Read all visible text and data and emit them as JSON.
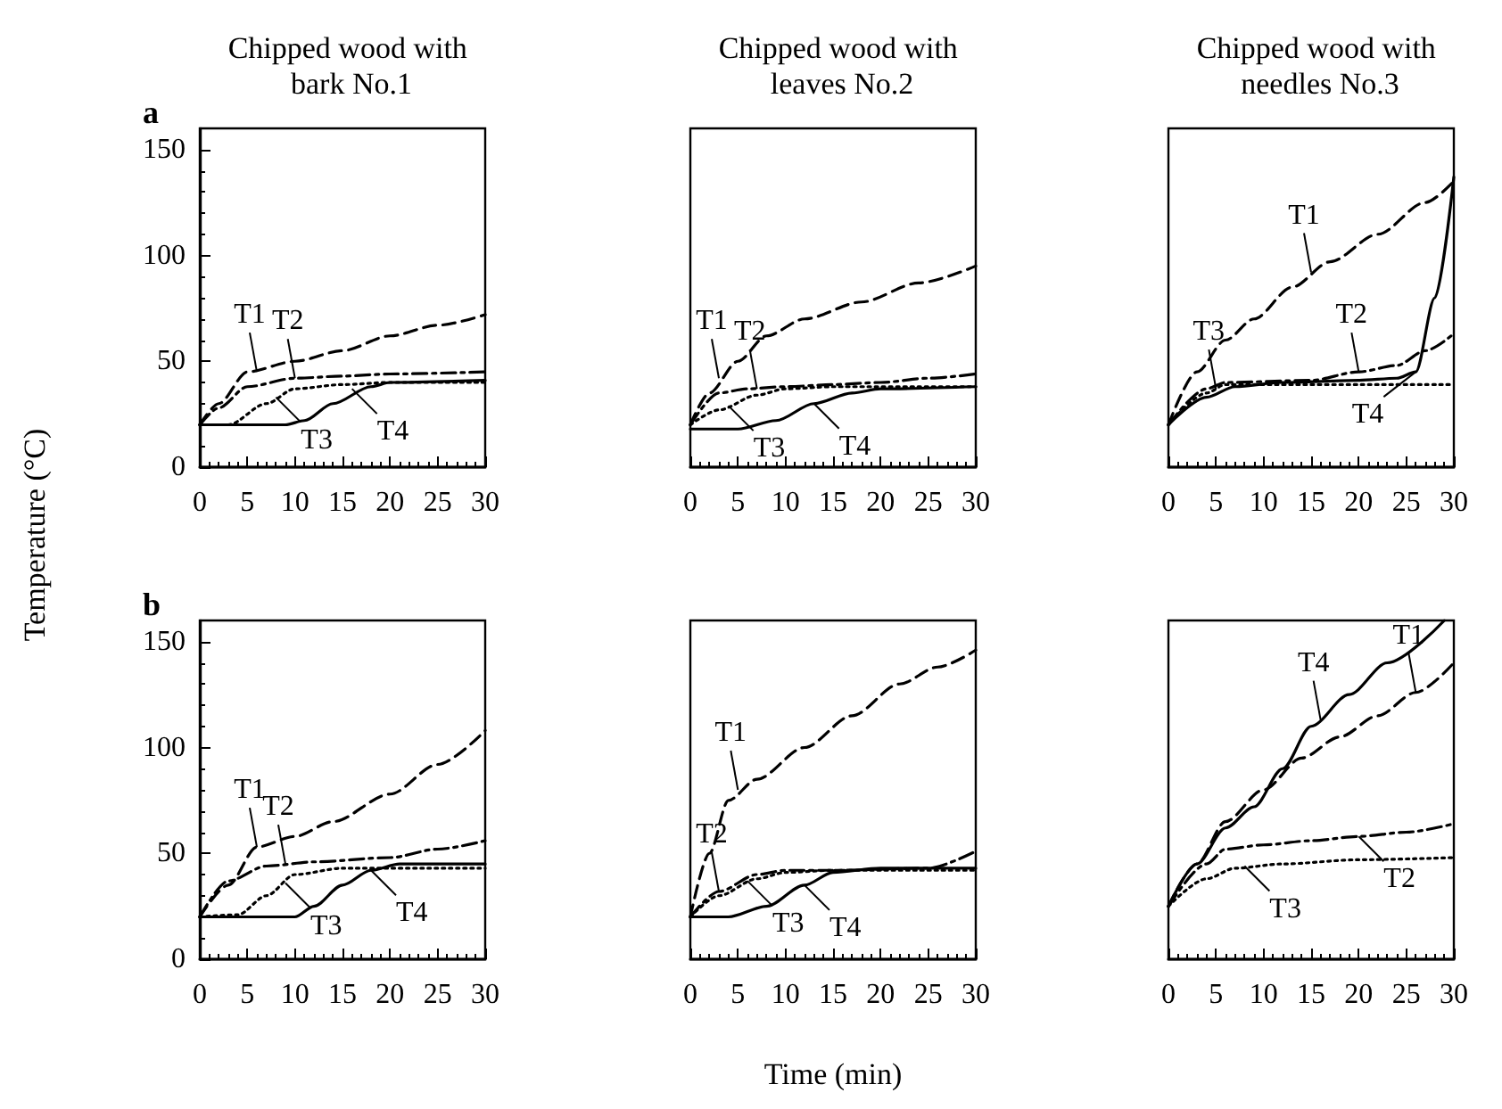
{
  "chart_data": [
    {
      "type": "line",
      "title": "Chipped wood with bark No.1",
      "ylabel": "Temperature (°C)",
      "annotations": [
        "a",
        {
          "text": "T1",
          "x": 6,
          "y": 45
        },
        {
          "text": "T2",
          "x": 10,
          "y": 42
        },
        {
          "text": "T3",
          "x": 8,
          "y": 33
        },
        {
          "text": "T4",
          "x": 16,
          "y": 37
        }
      ],
      "xlim": [
        0,
        30
      ],
      "xticks": [
        0,
        5,
        10,
        15,
        20,
        25,
        30
      ],
      "ylim": [
        0,
        160
      ],
      "yticks": [
        0,
        50,
        100,
        150
      ],
      "grid": false,
      "series": [
        {
          "color": "#000000",
          "line_style": "dashed",
          "x": [
            0,
            2,
            5,
            10,
            15,
            20,
            25,
            30
          ],
          "values": [
            20,
            30,
            45,
            50,
            55,
            62,
            67,
            72
          ]
        },
        {
          "color": "#000000",
          "line_style": "dashdot",
          "x": [
            0,
            2,
            5,
            10,
            15,
            20,
            30
          ],
          "values": [
            20,
            28,
            38,
            42,
            43,
            44,
            45
          ]
        },
        {
          "color": "#000000",
          "line_style": "dotted",
          "x": [
            0,
            3,
            7,
            10,
            15,
            20,
            30
          ],
          "values": [
            20,
            20,
            30,
            37,
            39,
            40,
            40
          ]
        },
        {
          "color": "#000000",
          "line_style": "solid",
          "x": [
            0,
            9,
            11,
            14,
            18,
            20,
            30
          ],
          "values": [
            20,
            20,
            22,
            30,
            38,
            40,
            41
          ]
        }
      ]
    },
    {
      "type": "line",
      "title": "Chipped wood with leaves No.2",
      "annotations": [
        {
          "text": "T1",
          "x": 3,
          "y": 42
        },
        {
          "text": "T2",
          "x": 7,
          "y": 37
        },
        {
          "text": "T3",
          "x": 4,
          "y": 29
        },
        {
          "text": "T4",
          "x": 13,
          "y": 30
        }
      ],
      "xlim": [
        0,
        30
      ],
      "xticks": [
        0,
        5,
        10,
        15,
        20,
        25,
        30
      ],
      "ylim": [
        0,
        160
      ],
      "tick_labels": "x",
      "grid": false,
      "series": [
        {
          "color": "#000000",
          "line_style": "dashed",
          "x": [
            0,
            2,
            5,
            8,
            12,
            18,
            24,
            30
          ],
          "values": [
            20,
            35,
            50,
            62,
            70,
            78,
            87,
            95
          ]
        },
        {
          "color": "#000000",
          "line_style": "dashdot",
          "x": [
            0,
            3,
            6,
            10,
            15,
            20,
            25,
            30
          ],
          "values": [
            20,
            35,
            37,
            38,
            39,
            40,
            42,
            44
          ]
        },
        {
          "color": "#000000",
          "line_style": "dotted",
          "x": [
            0,
            3,
            7,
            10,
            15,
            30
          ],
          "values": [
            20,
            27,
            34,
            37,
            38,
            38
          ]
        },
        {
          "color": "#000000",
          "line_style": "solid",
          "x": [
            0,
            5,
            9,
            13,
            17,
            20,
            30
          ],
          "values": [
            18,
            18,
            22,
            30,
            35,
            37,
            38
          ]
        }
      ]
    },
    {
      "type": "line",
      "title": "Chipped wood with needles No.3",
      "annotations": [
        {
          "text": "T1",
          "x": 15,
          "y": 92
        },
        {
          "text": "T2",
          "x": 20,
          "y": 45
        },
        {
          "text": "T3",
          "x": 5,
          "y": 37
        },
        {
          "text": "T4",
          "x": 26,
          "y": 45
        }
      ],
      "xlim": [
        0,
        30
      ],
      "xticks": [
        0,
        5,
        10,
        15,
        20,
        25,
        30
      ],
      "ylim": [
        0,
        160
      ],
      "tick_labels": "x",
      "grid": false,
      "series": [
        {
          "color": "#000000",
          "line_style": "dashed",
          "x": [
            0,
            3,
            6,
            9,
            13,
            17,
            22,
            27,
            30
          ],
          "values": [
            20,
            45,
            60,
            70,
            85,
            97,
            110,
            125,
            135
          ]
        },
        {
          "color": "#000000",
          "line_style": "dashdot",
          "x": [
            0,
            4,
            6,
            15,
            20,
            24,
            27,
            30
          ],
          "values": [
            20,
            37,
            40,
            41,
            45,
            48,
            55,
            63
          ]
        },
        {
          "color": "#000000",
          "line_style": "dotted",
          "x": [
            0,
            4,
            6,
            30
          ],
          "values": [
            20,
            35,
            39,
            39
          ]
        },
        {
          "color": "#000000",
          "line_style": "solid",
          "x": [
            0,
            4,
            7,
            12,
            20,
            24,
            26,
            28,
            30
          ],
          "values": [
            20,
            33,
            38,
            40,
            41,
            42,
            45,
            80,
            137
          ]
        }
      ]
    },
    {
      "type": "line",
      "annotations": [
        "b",
        {
          "text": "T1",
          "x": 6,
          "y": 53
        },
        {
          "text": "T2",
          "x": 9,
          "y": 45
        },
        {
          "text": "T3",
          "x": 9,
          "y": 36
        },
        {
          "text": "T4",
          "x": 18,
          "y": 42
        }
      ],
      "xlim": [
        0,
        30
      ],
      "xticks": [
        0,
        5,
        10,
        15,
        20,
        25,
        30
      ],
      "ylim": [
        0,
        160
      ],
      "yticks": [
        0,
        50,
        100,
        150
      ],
      "grid": false,
      "series": [
        {
          "color": "#000000",
          "line_style": "dashed",
          "x": [
            0,
            3,
            6,
            10,
            14,
            20,
            25,
            30
          ],
          "values": [
            20,
            35,
            53,
            58,
            65,
            78,
            92,
            108
          ]
        },
        {
          "color": "#000000",
          "line_style": "dashdot",
          "x": [
            0,
            3,
            7,
            12,
            20,
            25,
            30
          ],
          "values": [
            20,
            37,
            44,
            46,
            48,
            52,
            56
          ]
        },
        {
          "color": "#000000",
          "line_style": "dotted",
          "x": [
            0,
            4,
            7,
            10,
            15,
            30
          ],
          "values": [
            20,
            21,
            30,
            40,
            43,
            43
          ]
        },
        {
          "color": "#000000",
          "line_style": "solid",
          "x": [
            0,
            10,
            12,
            15,
            18,
            21,
            30
          ],
          "values": [
            20,
            20,
            25,
            35,
            42,
            45,
            45
          ]
        }
      ]
    },
    {
      "type": "line",
      "xlabel": "Time (min)",
      "annotations": [
        {
          "text": "T1",
          "x": 5,
          "y": 80
        },
        {
          "text": "T2",
          "x": 3,
          "y": 32
        },
        {
          "text": "T3",
          "x": 6,
          "y": 37
        },
        {
          "text": "T4",
          "x": 12,
          "y": 35
        }
      ],
      "xlim": [
        0,
        30
      ],
      "xticks": [
        0,
        5,
        10,
        15,
        20,
        25,
        30
      ],
      "ylim": [
        0,
        160
      ],
      "tick_labels": "x",
      "grid": false,
      "series": [
        {
          "color": "#000000",
          "line_style": "dashed",
          "x": [
            0,
            2,
            4,
            7,
            12,
            17,
            22,
            26,
            30
          ],
          "values": [
            20,
            50,
            75,
            85,
            100,
            115,
            130,
            138,
            146
          ]
        },
        {
          "color": "#000000",
          "line_style": "dashdot",
          "x": [
            0,
            3,
            7,
            10,
            15,
            25,
            30
          ],
          "values": [
            20,
            32,
            40,
            42,
            42,
            43,
            51
          ]
        },
        {
          "color": "#000000",
          "line_style": "dotted",
          "x": [
            0,
            3,
            7,
            10,
            15,
            30
          ],
          "values": [
            20,
            30,
            38,
            41,
            42,
            42
          ]
        },
        {
          "color": "#000000",
          "line_style": "solid",
          "x": [
            0,
            4,
            8,
            12,
            15,
            20,
            30
          ],
          "values": [
            20,
            20,
            25,
            35,
            41,
            43,
            43
          ]
        }
      ]
    },
    {
      "type": "line",
      "annotations": [
        {
          "text": "T1",
          "x": 26,
          "y": 126
        },
        {
          "text": "T2",
          "x": 20,
          "y": 58
        },
        {
          "text": "T3",
          "x": 8,
          "y": 44
        },
        {
          "text": "T4",
          "x": 16,
          "y": 113
        }
      ],
      "xlim": [
        0,
        30
      ],
      "xticks": [
        0,
        5,
        10,
        15,
        20,
        25,
        30
      ],
      "ylim": [
        0,
        160
      ],
      "tick_labels": "x",
      "grid": false,
      "series": [
        {
          "color": "#000000",
          "line_style": "dashed",
          "x": [
            0,
            3,
            6,
            10,
            14,
            18,
            22,
            26,
            30
          ],
          "values": [
            25,
            45,
            65,
            80,
            95,
            105,
            115,
            126,
            140
          ]
        },
        {
          "color": "#000000",
          "line_style": "dashdot",
          "x": [
            0,
            4,
            6,
            10,
            15,
            20,
            25,
            30
          ],
          "values": [
            25,
            45,
            52,
            54,
            56,
            58,
            60,
            64
          ]
        },
        {
          "color": "#000000",
          "line_style": "dotted",
          "x": [
            0,
            4,
            7,
            12,
            20,
            30
          ],
          "values": [
            25,
            38,
            43,
            45,
            47,
            48
          ]
        },
        {
          "color": "#000000",
          "line_style": "solid",
          "x": [
            0,
            3,
            6,
            9,
            12,
            15,
            19,
            23,
            29
          ],
          "values": [
            25,
            45,
            62,
            72,
            90,
            110,
            125,
            140,
            160
          ]
        }
      ]
    }
  ]
}
